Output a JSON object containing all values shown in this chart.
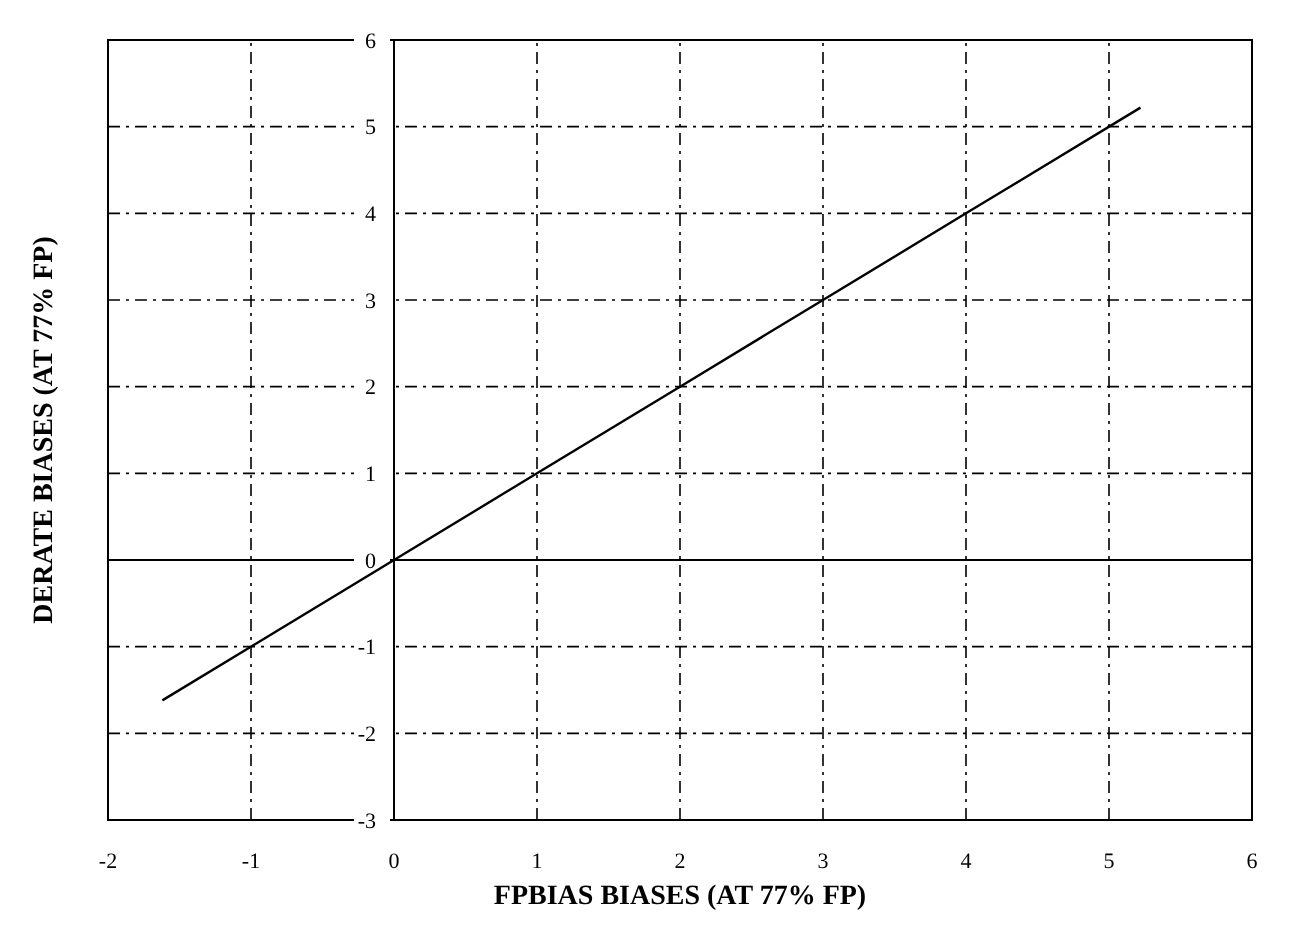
{
  "chart_data": {
    "type": "line",
    "xlabel": "FPBIAS BIASES (AT 77% FP)",
    "ylabel": "DERATE BIASES (AT 77% FP)",
    "x": [
      -1.62,
      0,
      1,
      2,
      3,
      4,
      5.22
    ],
    "series": [
      {
        "color": "#000000",
        "values": [
          -1.62,
          0,
          1,
          2,
          3,
          4,
          5.22
        ]
      }
    ],
    "xlim": [
      -2,
      6
    ],
    "xticks": [
      -2,
      -1,
      0,
      1,
      2,
      3,
      4,
      5,
      6
    ],
    "ylim": [
      -3,
      6
    ],
    "yticks": [
      -3,
      -2,
      -1,
      0,
      1,
      2,
      3,
      4,
      5,
      6
    ],
    "grid": true,
    "marker": "none",
    "line_style": "solid"
  }
}
